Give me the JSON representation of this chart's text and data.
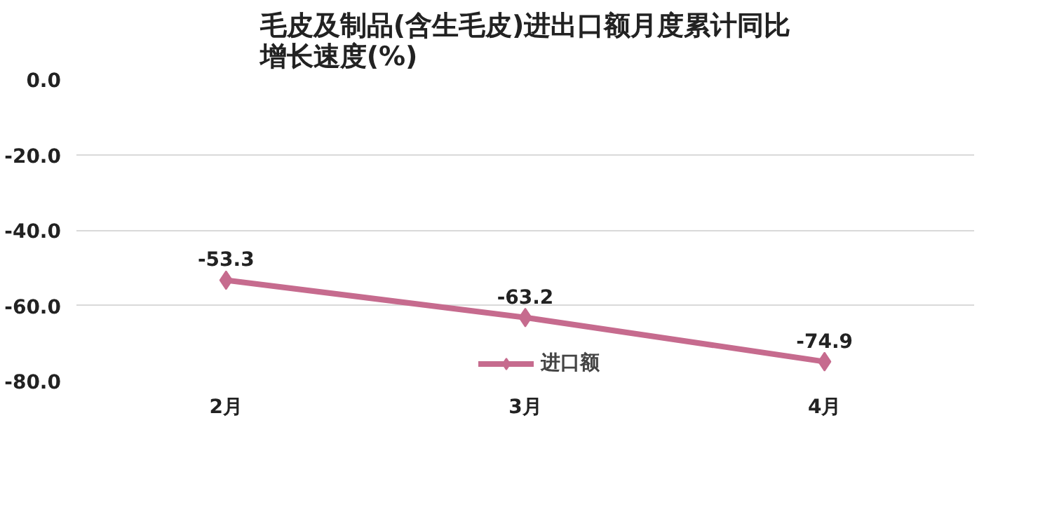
{
  "chart_data": {
    "type": "line",
    "title": "毛皮及制品(含生毛皮)进出口额月度累计同比增长速度(%)",
    "categories": [
      "2月",
      "3月",
      "4月"
    ],
    "series": [
      {
        "name": "进口额",
        "color": "#c66b8e",
        "values": [
          -53.3,
          -63.2,
          -74.9
        ]
      }
    ],
    "ylim": [
      -80,
      0
    ],
    "yticks": [
      {
        "value": 0,
        "label": "0.0"
      },
      {
        "value": -20,
        "label": "-20.0"
      },
      {
        "value": -40,
        "label": "-40.0"
      },
      {
        "value": -60,
        "label": "-60.0"
      },
      {
        "value": -80,
        "label": "-80.0"
      }
    ],
    "grid": "y",
    "legend": "bottom",
    "marker": "diamond",
    "line_style": "solid",
    "data_labels": true
  }
}
